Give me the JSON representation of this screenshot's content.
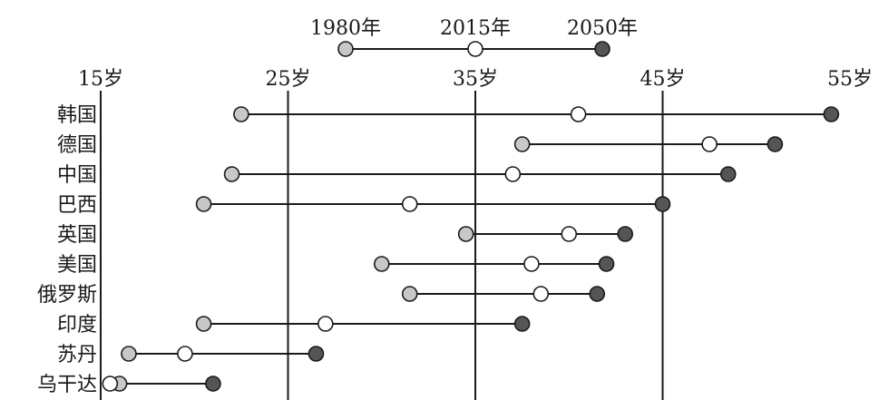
{
  "chart_data": {
    "type": "dumbbell",
    "unit": "岁",
    "xlim": [
      15,
      55
    ],
    "ticks": [
      {
        "value": 15,
        "label": "15岁"
      },
      {
        "value": 25,
        "label": "25岁"
      },
      {
        "value": 35,
        "label": "35岁"
      },
      {
        "value": 45,
        "label": "45岁"
      },
      {
        "value": 55,
        "label": "55岁"
      }
    ],
    "legend": [
      {
        "label": "1980年",
        "color": "#c8c8c8"
      },
      {
        "label": "2015年",
        "color": "#ffffff"
      },
      {
        "label": "2050年",
        "color": "#555555"
      }
    ],
    "categories": [
      "韩国",
      "德国",
      "中国",
      "巴西",
      "英国",
      "美国",
      "俄罗斯",
      "印度",
      "苏丹",
      "乌干达"
    ],
    "series": [
      {
        "name": "1980年",
        "values": [
          22.5,
          37.5,
          22,
          20.5,
          34.5,
          30,
          31.5,
          20.5,
          16.5,
          16
        ]
      },
      {
        "name": "2015年",
        "values": [
          40.5,
          47.5,
          37,
          31.5,
          40,
          38,
          38.5,
          27,
          19.5,
          15.5
        ]
      },
      {
        "name": "2050年",
        "values": [
          54,
          51,
          48.5,
          45,
          43,
          42,
          41.5,
          37.5,
          26.5,
          21
        ]
      }
    ]
  }
}
